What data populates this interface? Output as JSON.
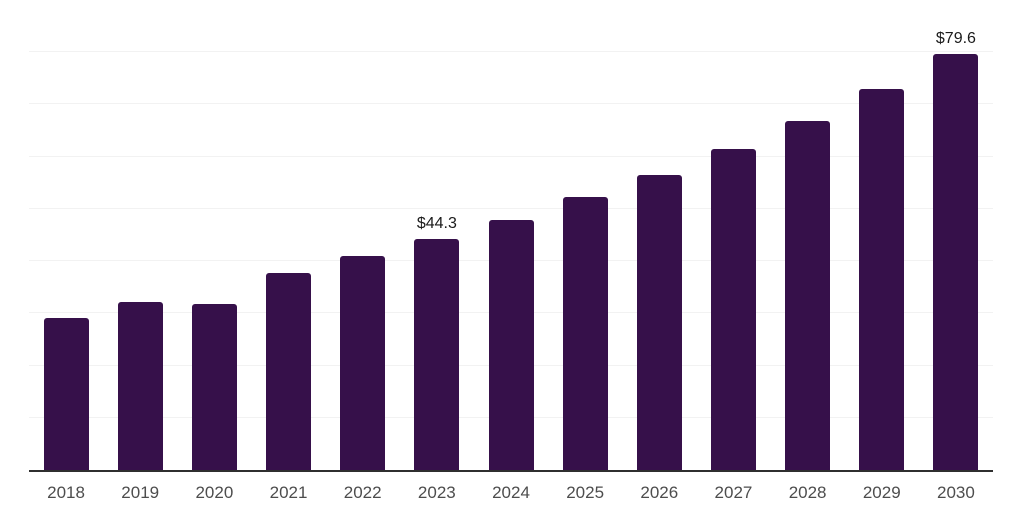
{
  "chart_data": {
    "type": "bar",
    "title": "",
    "xlabel": "",
    "ylabel": "",
    "categories": [
      "2018",
      "2019",
      "2020",
      "2021",
      "2022",
      "2023",
      "2024",
      "2025",
      "2026",
      "2027",
      "2028",
      "2029",
      "2030"
    ],
    "values": [
      29.2,
      32.1,
      31.8,
      37.7,
      41.0,
      44.3,
      47.9,
      52.2,
      56.5,
      61.4,
      66.8,
      72.9,
      79.6
    ],
    "bar_labels": [
      null,
      null,
      null,
      null,
      null,
      "$44.3",
      null,
      null,
      null,
      null,
      null,
      null,
      "$79.6"
    ],
    "ylim": [
      0,
      90
    ],
    "grid_step": 10,
    "grid": "horizontal only",
    "legend": "none",
    "colors": {
      "bar": "#36104a",
      "grid_line": "#f2f2f2",
      "top_grid_line": "#e3e3e3",
      "axis_line": "#2f2f2f",
      "x_tick_label": "#4d4d4d",
      "bar_value_label": "#1a1a1a",
      "background": "#ffffff"
    }
  }
}
